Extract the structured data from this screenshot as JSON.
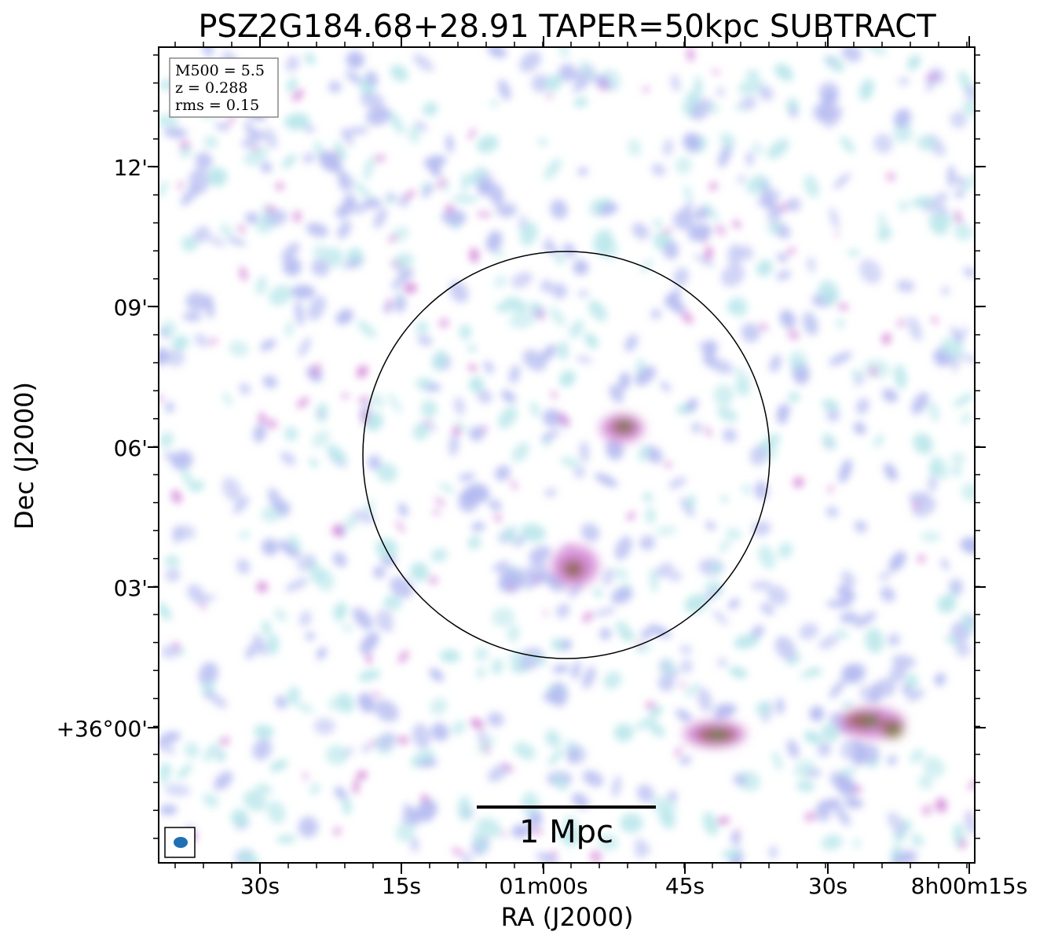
{
  "title": "PSZ2G184.68+28.91 TAPER=50kpc SUBTRACT",
  "info": {
    "mass": "M500 = 5.5",
    "redshift": "z = 0.288",
    "rms": "rms = 0.15"
  },
  "axes": {
    "xlabel": "RA (J2000)",
    "ylabel": "Dec (J2000)",
    "xticks": [
      "30s",
      "15s",
      "01m00s",
      "45s",
      "30s",
      "8h00m15s"
    ],
    "yticks": [
      "12'",
      "09'",
      "06'",
      "03'",
      "+36°00'"
    ]
  },
  "scalebar": {
    "label": "1 Mpc"
  },
  "colors": {
    "faint": "#b8e6ea",
    "low": "#b4baf0",
    "mid": "#d48ad8",
    "high": "#a0605a",
    "peak": "#3e8a2e",
    "beam": "#1f6fb4"
  }
}
